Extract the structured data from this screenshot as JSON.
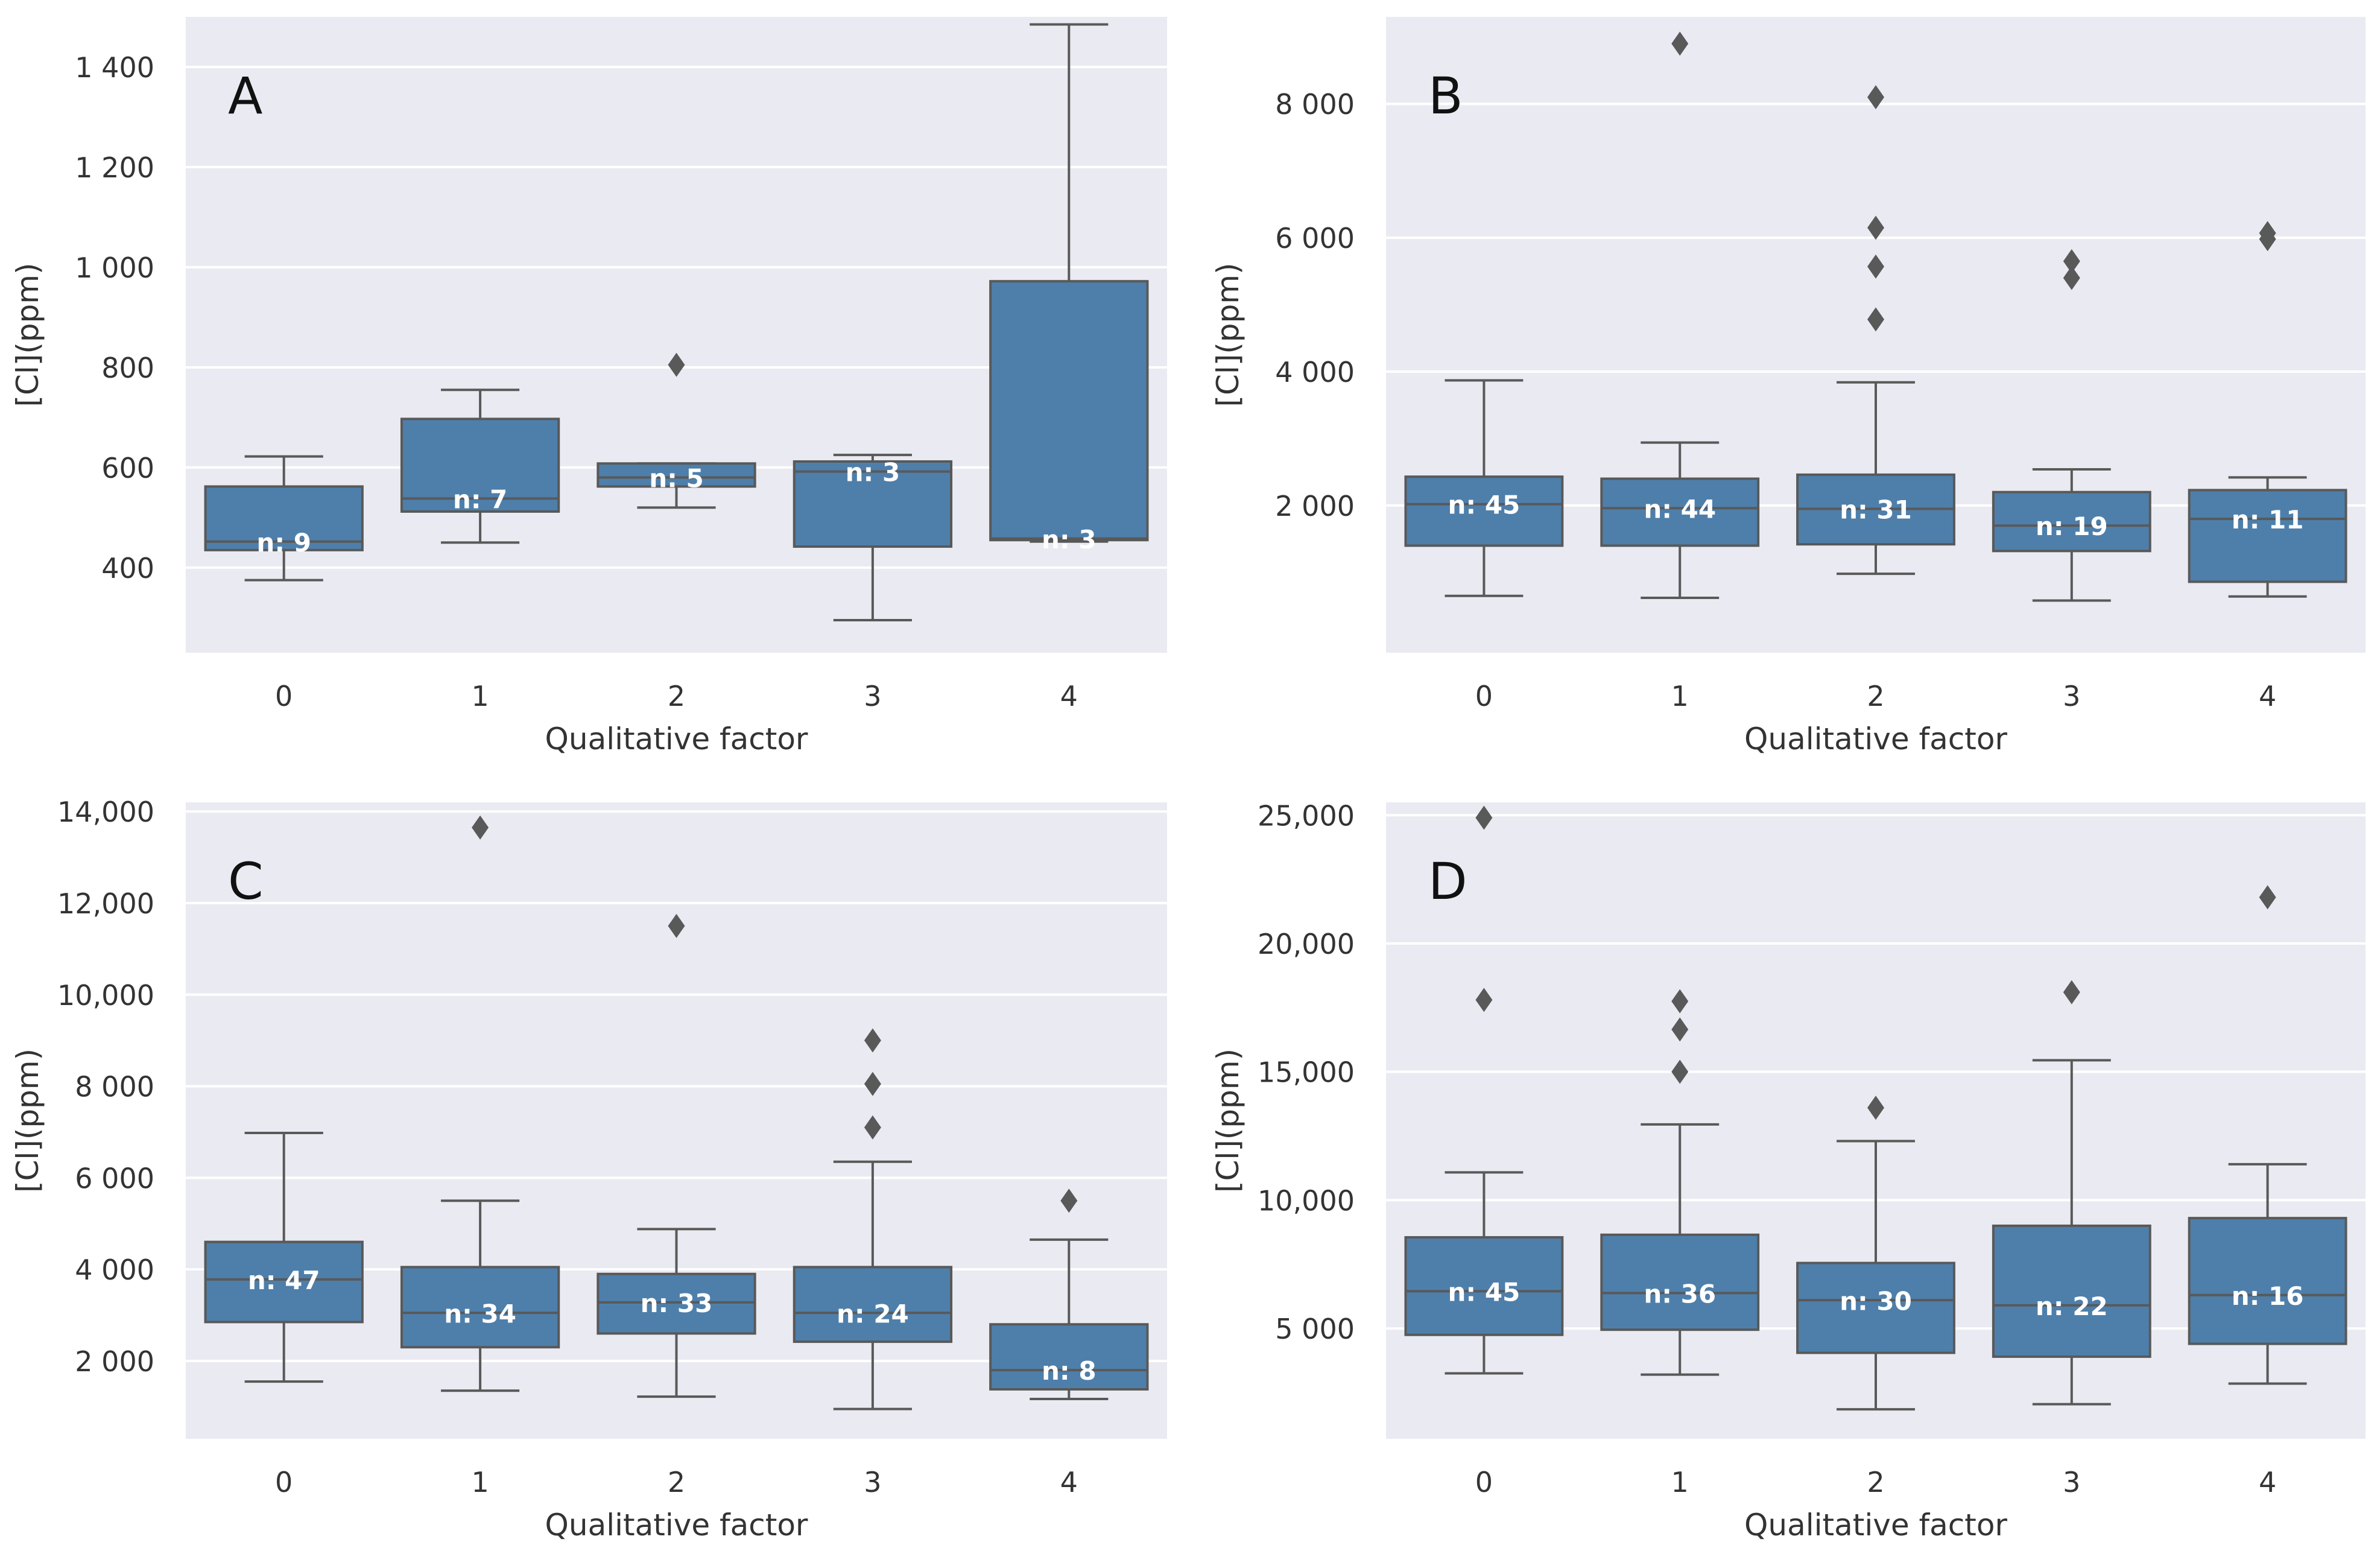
{
  "chart_data": [
    {
      "type": "box",
      "panel_label": "A",
      "xlabel": "Qualitative factor",
      "ylabel": "[Cl](ppm)",
      "ylim": [
        230,
        1500
      ],
      "ticks": [
        400,
        600,
        800,
        1000,
        1200,
        1400
      ],
      "tick_labels": [
        "400",
        "600",
        "800",
        "1 000",
        "1 200",
        "1 400"
      ],
      "categories": [
        "0",
        "1",
        "2",
        "3",
        "4"
      ],
      "boxes": [
        {
          "category": "0",
          "whisker_low": 375,
          "q1": 435,
          "median": 452,
          "q3": 562,
          "whisker_high": 622,
          "outliers": [],
          "label": "n: 9"
        },
        {
          "category": "1",
          "whisker_low": 450,
          "q1": 512,
          "median": 538,
          "q3": 697,
          "whisker_high": 755,
          "outliers": [],
          "label": "n: 7"
        },
        {
          "category": "2",
          "whisker_low": 520,
          "q1": 562,
          "median": 580,
          "q3": 608,
          "whisker_high": 608,
          "outliers": [
            805
          ],
          "label": "n: 5"
        },
        {
          "category": "3",
          "whisker_low": 295,
          "q1": 442,
          "median": 592,
          "q3": 612,
          "whisker_high": 625,
          "outliers": [],
          "label": "n: 3"
        },
        {
          "category": "4",
          "whisker_low": 452,
          "q1": 455,
          "median": 458,
          "q3": 972,
          "whisker_high": 1485,
          "outliers": [],
          "label": "n: 3"
        }
      ]
    },
    {
      "type": "box",
      "panel_label": "B",
      "xlabel": "Qualitative factor",
      "ylabel": "[Cl](ppm)",
      "ylim": [
        -200,
        9300
      ],
      "ticks": [
        2000,
        4000,
        6000,
        8000
      ],
      "tick_labels": [
        "2 000",
        "4 000",
        "6 000",
        "8 000"
      ],
      "categories": [
        "0",
        "1",
        "2",
        "3",
        "4"
      ],
      "boxes": [
        {
          "category": "0",
          "whisker_low": 650,
          "q1": 1400,
          "median": 2020,
          "q3": 2430,
          "whisker_high": 3870,
          "outliers": [],
          "label": "n: 45"
        },
        {
          "category": "1",
          "whisker_low": 620,
          "q1": 1400,
          "median": 1960,
          "q3": 2400,
          "whisker_high": 2940,
          "outliers": [
            8900
          ],
          "label": "n: 44"
        },
        {
          "category": "2",
          "whisker_low": 980,
          "q1": 1420,
          "median": 1950,
          "q3": 2460,
          "whisker_high": 3840,
          "outliers": [
            4780,
            5570,
            6150,
            8100
          ],
          "label": "n: 31"
        },
        {
          "category": "3",
          "whisker_low": 580,
          "q1": 1320,
          "median": 1700,
          "q3": 2200,
          "whisker_high": 2540,
          "outliers": [
            5400,
            5650
          ],
          "label": "n: 19"
        },
        {
          "category": "4",
          "whisker_low": 640,
          "q1": 860,
          "median": 1800,
          "q3": 2230,
          "whisker_high": 2420,
          "outliers": [
            5980,
            6070
          ],
          "label": "n: 11"
        }
      ]
    },
    {
      "type": "box",
      "panel_label": "C",
      "xlabel": "Qualitative factor",
      "ylabel": "[Cl](ppm)",
      "ylim": [
        300,
        14200
      ],
      "ticks": [
        2000,
        4000,
        6000,
        8000,
        10000,
        12000,
        14000
      ],
      "tick_labels": [
        "2 000",
        "4 000",
        "6 000",
        "8 000",
        "10,000",
        "12,000",
        "14,000"
      ],
      "categories": [
        "0",
        "1",
        "2",
        "3",
        "4"
      ],
      "boxes": [
        {
          "category": "0",
          "whisker_low": 1550,
          "q1": 2850,
          "median": 3780,
          "q3": 4600,
          "whisker_high": 6980,
          "outliers": [],
          "label": "n: 47"
        },
        {
          "category": "1",
          "whisker_low": 1350,
          "q1": 2300,
          "median": 3050,
          "q3": 4050,
          "whisker_high": 5500,
          "outliers": [
            13650
          ],
          "label": "n: 34"
        },
        {
          "category": "2",
          "whisker_low": 1220,
          "q1": 2600,
          "median": 3280,
          "q3": 3900,
          "whisker_high": 4880,
          "outliers": [
            11500
          ],
          "label": "n: 33"
        },
        {
          "category": "3",
          "whisker_low": 950,
          "q1": 2420,
          "median": 3050,
          "q3": 4050,
          "whisker_high": 6350,
          "outliers": [
            7100,
            8050,
            9000
          ],
          "label": "n: 24"
        },
        {
          "category": "4",
          "whisker_low": 1170,
          "q1": 1380,
          "median": 1800,
          "q3": 2800,
          "whisker_high": 4650,
          "outliers": [
            5500
          ],
          "label": "n: 8"
        }
      ]
    },
    {
      "type": "box",
      "panel_label": "D",
      "xlabel": "Qualitative factor",
      "ylabel": "[Cl](ppm)",
      "ylim": [
        700,
        25500
      ],
      "ticks": [
        5000,
        10000,
        15000,
        20000,
        25000
      ],
      "tick_labels": [
        "5 000",
        "10,000",
        "15,000",
        "20,000",
        "25,000"
      ],
      "categories": [
        "0",
        "1",
        "2",
        "3",
        "4"
      ],
      "boxes": [
        {
          "category": "0",
          "whisker_low": 3250,
          "q1": 4750,
          "median": 6450,
          "q3": 8550,
          "whisker_high": 11080,
          "outliers": [
            17800,
            24900
          ],
          "label": "n: 45"
        },
        {
          "category": "1",
          "whisker_low": 3200,
          "q1": 4950,
          "median": 6380,
          "q3": 8650,
          "whisker_high": 12950,
          "outliers": [
            15000,
            16650,
            17750
          ],
          "label": "n: 36"
        },
        {
          "category": "2",
          "whisker_low": 1850,
          "q1": 4050,
          "median": 6100,
          "q3": 7550,
          "whisker_high": 12300,
          "outliers": [
            13600
          ],
          "label": "n: 30"
        },
        {
          "category": "3",
          "whisker_low": 2050,
          "q1": 3900,
          "median": 5900,
          "q3": 9000,
          "whisker_high": 15450,
          "outliers": [
            18100
          ],
          "label": "n: 22"
        },
        {
          "category": "4",
          "whisker_low": 2850,
          "q1": 4400,
          "median": 6300,
          "q3": 9300,
          "whisker_high": 11400,
          "outliers": [
            21800
          ],
          "label": "n: 16"
        }
      ]
    }
  ],
  "colors": {
    "box_fill": "#4e7fab",
    "plot_background": "#eaeaf2",
    "grid": "#ffffff",
    "lines": "#595959",
    "outlier": "#595959",
    "count_label": "#ffffff",
    "text": "#333333"
  }
}
